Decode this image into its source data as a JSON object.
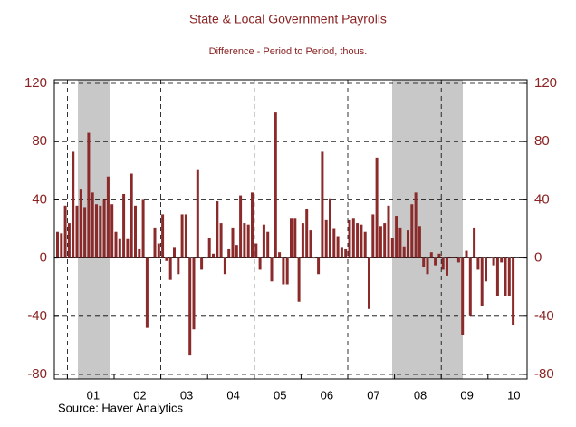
{
  "chart_data": {
    "type": "bar",
    "title": "State & Local Government Payrolls",
    "subtitle": "Difference - Period to Period, thous.",
    "source": "Source: Haver Analytics",
    "color": "#8b2a2a",
    "categories": [
      null,
      null,
      null,
      null,
      null,
      null,
      null,
      null,
      null,
      "01",
      null,
      null,
      null,
      null,
      null,
      null,
      null,
      null,
      null,
      null,
      null,
      "02",
      null,
      null,
      null,
      null,
      null,
      null,
      null,
      null,
      null,
      null,
      null,
      "03",
      null,
      null,
      null,
      null,
      null,
      null,
      null,
      null,
      null,
      null,
      null,
      "04",
      null,
      null,
      null,
      null,
      null,
      null,
      null,
      null,
      null,
      null,
      null,
      "05",
      null,
      null,
      null,
      null,
      null,
      null,
      null,
      null,
      null,
      null,
      null,
      "06",
      null,
      null,
      null,
      null,
      null,
      null,
      null,
      null,
      null,
      null,
      null,
      "07",
      null,
      null,
      null,
      null,
      null,
      null,
      null,
      null,
      null,
      null,
      null,
      "08",
      null,
      null,
      null,
      null,
      null,
      null,
      null,
      null,
      null,
      null,
      null,
      "09",
      null,
      null,
      null,
      null,
      null,
      null,
      null,
      null,
      null,
      null,
      null,
      "10"
    ],
    "values": [
      18,
      17,
      36,
      24,
      73,
      36,
      47,
      35,
      86,
      45,
      37,
      36,
      40,
      56,
      37,
      18,
      13,
      44,
      13,
      58,
      36,
      6,
      40,
      -48,
      1,
      21,
      10,
      30,
      -2,
      -15,
      7,
      -11,
      30,
      30,
      -67,
      -49,
      61,
      -8,
      0,
      14,
      3,
      39,
      24,
      -11,
      6,
      21,
      9,
      43,
      24,
      23,
      45,
      10,
      -8,
      23,
      18,
      -16,
      100,
      4,
      -18,
      -18,
      27,
      27,
      -30,
      24,
      34,
      19,
      0,
      -11,
      73,
      26,
      41,
      20,
      15,
      7,
      6,
      26,
      27,
      24,
      23,
      18,
      -35,
      30,
      69,
      22,
      24,
      36,
      14,
      29,
      21,
      8,
      19,
      37,
      45,
      22,
      -6,
      -11,
      4,
      -5,
      3,
      -8,
      -12,
      1,
      1,
      -3,
      -53,
      5,
      -40,
      21,
      -8,
      -33,
      -16,
      0,
      -5,
      -26,
      -3,
      -26,
      -26,
      -46
    ],
    "ylim": [
      -80,
      120
    ],
    "yticks": [
      -80,
      -40,
      0,
      40,
      80,
      120
    ],
    "grid": true
  }
}
